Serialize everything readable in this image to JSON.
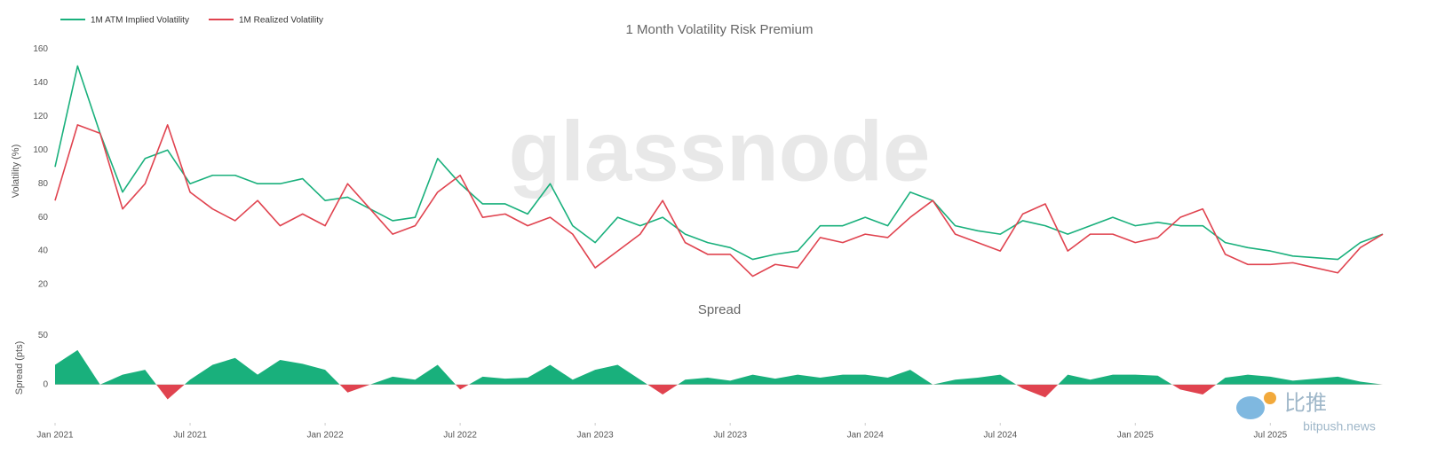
{
  "chart_data": [
    {
      "type": "line",
      "title": "1 Month Volatility Risk Premium",
      "ylabel": "Volatility (%)",
      "x": [
        "2021-01",
        "2021-02",
        "2021-03",
        "2021-04",
        "2021-05",
        "2021-06",
        "2021-07",
        "2021-08",
        "2021-09",
        "2021-10",
        "2021-11",
        "2021-12",
        "2022-01",
        "2022-02",
        "2022-03",
        "2022-04",
        "2022-05",
        "2022-06",
        "2022-07",
        "2022-08",
        "2022-09",
        "2022-10",
        "2022-11",
        "2022-12",
        "2023-01",
        "2023-02",
        "2023-03",
        "2023-04",
        "2023-05",
        "2023-06",
        "2023-07",
        "2023-08",
        "2023-09",
        "2023-10",
        "2023-11",
        "2023-12",
        "2024-01",
        "2024-02",
        "2024-03",
        "2024-04",
        "2024-05",
        "2024-06",
        "2024-07",
        "2024-08",
        "2024-09",
        "2024-10",
        "2024-11",
        "2024-12",
        "2025-01",
        "2025-02",
        "2025-03",
        "2025-04",
        "2025-05",
        "2025-06",
        "2025-07",
        "2025-08",
        "2025-09",
        "2025-10",
        "2025-11",
        "2025-12"
      ],
      "series": [
        {
          "name": "1M ATM Implied Volatility",
          "color": "#19b07c",
          "values": [
            90,
            150,
            110,
            75,
            95,
            100,
            80,
            85,
            85,
            80,
            80,
            83,
            70,
            72,
            65,
            58,
            60,
            95,
            80,
            68,
            68,
            62,
            80,
            55,
            45,
            60,
            55,
            60,
            50,
            45,
            42,
            35,
            38,
            40,
            55,
            55,
            60,
            55,
            75,
            70,
            55,
            52,
            50,
            58,
            55,
            50,
            55,
            60,
            55,
            57,
            55,
            55,
            45,
            42,
            40,
            37,
            36,
            35,
            45,
            50
          ]
        },
        {
          "name": "1M Realized Volatility",
          "color": "#e0434f",
          "values": [
            70,
            115,
            110,
            65,
            80,
            115,
            75,
            65,
            58,
            70,
            55,
            62,
            55,
            80,
            65,
            50,
            55,
            75,
            85,
            60,
            62,
            55,
            60,
            50,
            30,
            40,
            50,
            70,
            45,
            38,
            38,
            25,
            32,
            30,
            48,
            45,
            50,
            48,
            60,
            70,
            50,
            45,
            40,
            62,
            68,
            40,
            50,
            50,
            45,
            48,
            60,
            65,
            38,
            32,
            32,
            33,
            30,
            27,
            42,
            50
          ]
        }
      ],
      "ylim": [
        10,
        165
      ],
      "yticks": [
        20,
        40,
        60,
        80,
        100,
        120,
        140,
        160
      ],
      "grid": false,
      "legend": "top-left"
    },
    {
      "type": "area",
      "title": "Spread",
      "ylabel": "Spread (pts)",
      "x": [
        "2021-01",
        "2021-02",
        "2021-03",
        "2021-04",
        "2021-05",
        "2021-06",
        "2021-07",
        "2021-08",
        "2021-09",
        "2021-10",
        "2021-11",
        "2021-12",
        "2022-01",
        "2022-02",
        "2022-03",
        "2022-04",
        "2022-05",
        "2022-06",
        "2022-07",
        "2022-08",
        "2022-09",
        "2022-10",
        "2022-11",
        "2022-12",
        "2023-01",
        "2023-02",
        "2023-03",
        "2023-04",
        "2023-05",
        "2023-06",
        "2023-07",
        "2023-08",
        "2023-09",
        "2023-10",
        "2023-11",
        "2023-12",
        "2024-01",
        "2024-02",
        "2024-03",
        "2024-04",
        "2024-05",
        "2024-06",
        "2024-07",
        "2024-08",
        "2024-09",
        "2024-10",
        "2024-11",
        "2024-12",
        "2025-01",
        "2025-02",
        "2025-03",
        "2025-04",
        "2025-05",
        "2025-06",
        "2025-07",
        "2025-08",
        "2025-09",
        "2025-10",
        "2025-11",
        "2025-12"
      ],
      "values": [
        20,
        35,
        0,
        10,
        15,
        -15,
        5,
        20,
        27,
        10,
        25,
        21,
        15,
        -8,
        0,
        8,
        5,
        20,
        -5,
        8,
        6,
        7,
        20,
        5,
        15,
        20,
        5,
        -10,
        5,
        7,
        4,
        10,
        6,
        10,
        7,
        10,
        10,
        7,
        15,
        0,
        5,
        7,
        10,
        -4,
        -13,
        10,
        5,
        10,
        10,
        9,
        -5,
        -10,
        7,
        10,
        8,
        4,
        6,
        8,
        3,
        0
      ],
      "positive_color": "#19b07c",
      "negative_color": "#e0434f",
      "ylim": [
        -37,
        60
      ],
      "yticks": [
        0,
        50
      ],
      "xticks": [
        {
          "value": "2021-01",
          "label": "Jan 2021"
        },
        {
          "value": "2021-07",
          "label": "Jul 2021"
        },
        {
          "value": "2022-01",
          "label": "Jan 2022"
        },
        {
          "value": "2022-07",
          "label": "Jul 2022"
        },
        {
          "value": "2023-01",
          "label": "Jan 2023"
        },
        {
          "value": "2023-07",
          "label": "Jul 2023"
        },
        {
          "value": "2024-01",
          "label": "Jan 2024"
        },
        {
          "value": "2024-07",
          "label": "Jul 2024"
        },
        {
          "value": "2025-01",
          "label": "Jan 2025"
        },
        {
          "value": "2025-07",
          "label": "Jul 2025"
        }
      ],
      "grid": false
    }
  ],
  "watermark": "glassnode",
  "logo": {
    "name": "比推",
    "site": "bitpush.news"
  }
}
